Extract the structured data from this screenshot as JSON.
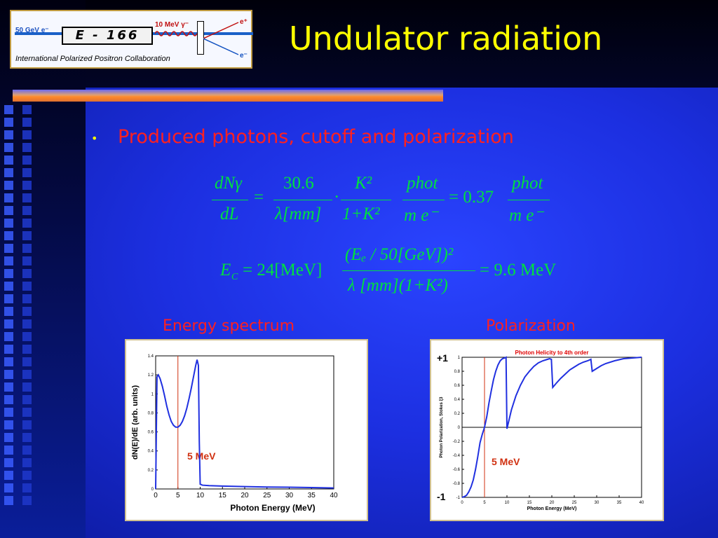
{
  "slide": {
    "title": "Undulator radiation",
    "bullet": "Produced photons, cutoff and polarization",
    "caption_left": "Energy spectrum",
    "caption_right": "Polarization"
  },
  "logo": {
    "beam_label": "50 GeV e⁻",
    "experiment": "E - 166",
    "photon_label": "10 MeV γ⁻",
    "positron": "e⁺",
    "electron": "e⁻",
    "collaboration": "International Polarized Positron Collaboration"
  },
  "equations": {
    "eq1_lhs_num": "dNγ",
    "eq1_lhs_den": "dL",
    "eq1_f1_num": "30.6",
    "eq1_f1_den": "λ[mm]",
    "eq1_f2_num": "K²",
    "eq1_f2_den": "1+K²",
    "eq1_f3_num": "phot",
    "eq1_f3_den": "m e⁻",
    "eq1_mid": "= 0.37",
    "eq1_f4_num": "phot",
    "eq1_f4_den": "m e⁻",
    "eq2_lhs": "E",
    "eq2_lhs_sub": "C",
    "eq2_pref": "= 24[MeV]",
    "eq2_num": "(Eₑ / 50[GeV])²",
    "eq2_den": "λ [mm](1+K²)",
    "eq2_rhs": "= 9.6 MeV"
  },
  "chart_data": [
    {
      "type": "line",
      "xlabel": "Photon Energy (MeV)",
      "ylabel": "dN(E)/dE (arb. units)",
      "xlim": [
        0,
        40
      ],
      "ylim": [
        0,
        1.4
      ],
      "xticks": [
        "0",
        "5",
        "10",
        "15",
        "20",
        "25",
        "30",
        "35",
        "40"
      ],
      "yticks": [
        "0",
        "0.2",
        "0.4",
        "0.6",
        "0.8",
        "1",
        "1.2",
        "1.4"
      ],
      "series": [
        {
          "color": "#2030e0",
          "x": [
            0,
            0.3,
            0.6,
            1,
            1.5,
            2,
            2.5,
            3,
            3.5,
            4,
            4.5,
            5,
            5.5,
            6,
            6.5,
            7,
            7.5,
            8,
            8.5,
            9,
            9.3,
            9.6,
            9.8,
            10,
            10.5,
            12,
            15,
            20,
            25,
            30,
            35,
            40
          ],
          "y": [
            0.0,
            1.18,
            1.2,
            1.16,
            1.08,
            0.98,
            0.87,
            0.78,
            0.71,
            0.67,
            0.65,
            0.65,
            0.67,
            0.71,
            0.77,
            0.85,
            0.95,
            1.06,
            1.18,
            1.3,
            1.36,
            1.3,
            0.5,
            0.05,
            0.04,
            0.035,
            0.03,
            0.025,
            0.02,
            0.018,
            0.015,
            0.01
          ]
        }
      ],
      "marker_line": {
        "x": 5,
        "color": "#d03010",
        "label": "5 MeV"
      }
    },
    {
      "type": "line",
      "title": "Photon Helicity to 4th order",
      "xlabel": "Photon Energy (MeV)",
      "ylabel": "Photon Polarization, Stokes ξ3",
      "xlim": [
        0,
        40
      ],
      "ylim": [
        -1,
        1
      ],
      "xticks": [
        "0",
        "5",
        "10",
        "15",
        "20",
        "25",
        "30",
        "35",
        "40"
      ],
      "yticks": [
        "-1",
        "-0.8",
        "-0.6",
        "-0.4",
        "-0.2",
        "0",
        "0.2",
        "0.4",
        "0.6",
        "0.8",
        "1"
      ],
      "annotations": {
        "top": "+1",
        "bottom": "-1"
      },
      "series": [
        {
          "color": "#2030e0",
          "x": [
            0,
            0.5,
            1,
            1.5,
            2,
            2.5,
            3,
            3.5,
            4,
            4.5,
            5,
            5.5,
            6,
            6.5,
            7,
            7.5,
            8,
            8.5,
            9,
            9.5,
            9.8,
            10,
            11,
            12,
            13,
            14,
            15,
            16,
            17,
            18,
            19,
            19.5,
            19.9,
            20.2,
            21,
            22,
            23,
            24,
            25,
            26,
            27,
            28,
            28.7,
            29,
            30,
            31,
            32,
            34,
            36,
            38,
            40
          ],
          "y": [
            -1.0,
            -0.99,
            -0.97,
            -0.92,
            -0.85,
            -0.75,
            -0.6,
            -0.42,
            -0.22,
            -0.1,
            0.0,
            0.15,
            0.35,
            0.52,
            0.68,
            0.8,
            0.89,
            0.95,
            0.98,
            0.99,
            1.0,
            -0.02,
            0.25,
            0.45,
            0.6,
            0.72,
            0.8,
            0.87,
            0.92,
            0.95,
            0.97,
            0.98,
            0.97,
            0.57,
            0.63,
            0.7,
            0.76,
            0.82,
            0.86,
            0.9,
            0.93,
            0.95,
            0.97,
            0.8,
            0.84,
            0.88,
            0.91,
            0.95,
            0.98,
            0.99,
            1.0
          ]
        }
      ],
      "marker_line": {
        "x": 5,
        "color": "#d03010",
        "label": "5 MeV"
      }
    }
  ],
  "colors": {
    "title": "#ffff00",
    "bullet": "#ff2020",
    "equation": "#00e040",
    "curve": "#2030e0",
    "marker": "#d03010"
  }
}
